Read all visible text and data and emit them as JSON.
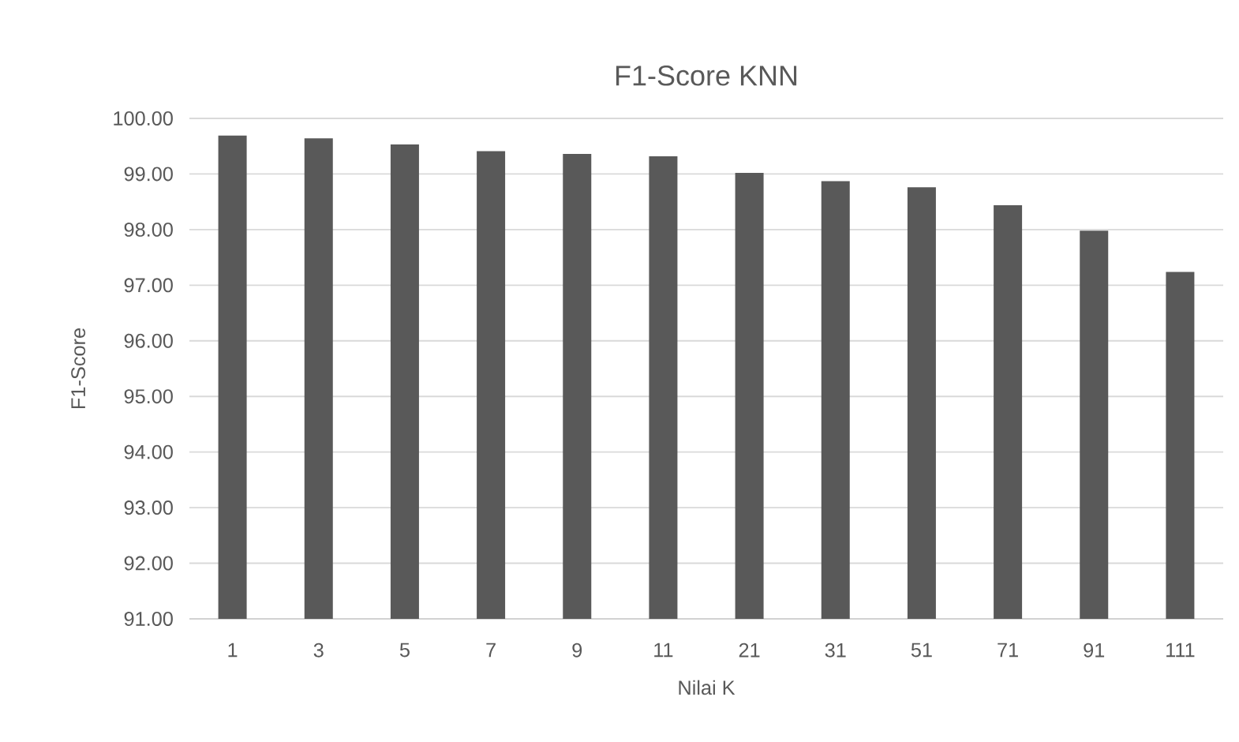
{
  "chart_data": {
    "type": "bar",
    "title": "F1-Score KNN",
    "xlabel": "Nilai K",
    "ylabel": "F1-Score",
    "categories": [
      "1",
      "3",
      "5",
      "7",
      "9",
      "11",
      "21",
      "31",
      "51",
      "71",
      "91",
      "111"
    ],
    "values": [
      99.69,
      99.64,
      99.53,
      99.41,
      99.36,
      99.32,
      99.02,
      98.87,
      98.76,
      98.44,
      97.98,
      97.24
    ],
    "color": "#595959",
    "ylim": [
      91,
      100
    ],
    "yticks": [
      {
        "value": 91,
        "label": "91.00"
      },
      {
        "value": 92,
        "label": "92.00"
      },
      {
        "value": 93,
        "label": "93.00"
      },
      {
        "value": 94,
        "label": "94.00"
      },
      {
        "value": 95,
        "label": "95.00"
      },
      {
        "value": 96,
        "label": "96.00"
      },
      {
        "value": 97,
        "label": "97.00"
      },
      {
        "value": 98,
        "label": "98.00"
      },
      {
        "value": 99,
        "label": "99.00"
      },
      {
        "value": 100,
        "label": "100.00"
      }
    ],
    "grid": "y"
  }
}
